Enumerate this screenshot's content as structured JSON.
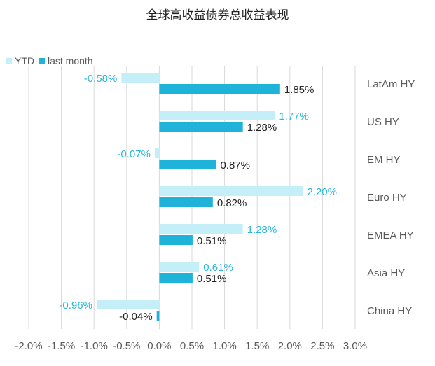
{
  "chart_data": {
    "type": "bar",
    "orientation": "horizontal",
    "title": "全球高收益债券总收益表现",
    "categories": [
      "LatAm HY",
      "US HY",
      "EM HY",
      "Euro HY",
      "EMEA HY",
      "Asia HY",
      "China HY"
    ],
    "series": [
      {
        "name": "YTD",
        "color": "#c5eff8",
        "label_color": "#29b6d8",
        "values": [
          -0.58,
          1.77,
          -0.07,
          2.2,
          1.28,
          0.61,
          -0.96
        ],
        "labels": [
          "-0.58%",
          "1.77%",
          "-0.07%",
          "2.20%",
          "1.28%",
          "0.61%",
          "-0.96%"
        ]
      },
      {
        "name": "last month",
        "color": "#1fb3d9",
        "label_color": "#222222",
        "values": [
          1.85,
          1.28,
          0.87,
          0.82,
          0.51,
          0.51,
          -0.04
        ],
        "labels": [
          "1.85%",
          "1.28%",
          "0.87%",
          "0.82%",
          "0.51%",
          "0.51%",
          "-0.04%"
        ]
      }
    ],
    "xlim": [
      -2.0,
      3.0
    ],
    "xticks": [
      -2.0,
      -1.5,
      -1.0,
      -0.5,
      0.0,
      0.5,
      1.0,
      1.5,
      2.0,
      2.5,
      3.0
    ],
    "xtick_labels": [
      "-2.0%",
      "-1.5%",
      "-1.0%",
      "-0.5%",
      "0.0%",
      "0.5%",
      "1.0%",
      "1.5%",
      "2.0%",
      "2.5%",
      "3.0%"
    ],
    "grid": "vertical",
    "legend_position": "top-left",
    "xlabel": "",
    "ylabel": ""
  }
}
